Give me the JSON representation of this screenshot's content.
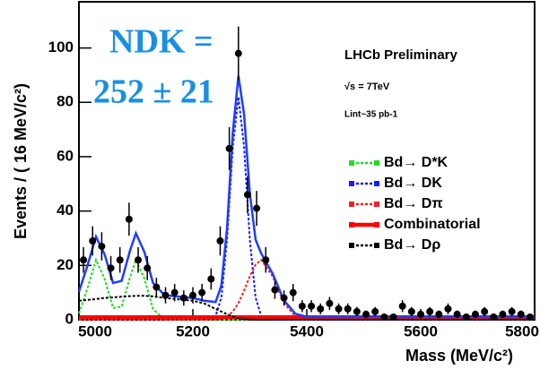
{
  "chart_data": {
    "type": "line",
    "y_label": "Events / ( 16 MeV/c²)",
    "x_label": "Mass (MeV/c²)",
    "annotations": [
      "NDK =",
      "252 ± 21",
      "LHCb Preliminary",
      "√s = 7TeV",
      "Lint~35 pb-1"
    ],
    "xlim": [
      5000,
      5800
    ],
    "xticks": [
      5000,
      5200,
      5400,
      5600,
      5800
    ],
    "ylim": [
      0,
      117
    ],
    "yticks": [
      0,
      20,
      40,
      60,
      80,
      100
    ],
    "x": [
      5000,
      5015,
      5030,
      5045,
      5060,
      5075,
      5090,
      5100,
      5115,
      5130,
      5150,
      5175,
      5200,
      5220,
      5240,
      5250,
      5260,
      5270,
      5280,
      5290,
      5300,
      5310,
      5320,
      5340,
      5360,
      5380,
      5400,
      5450,
      5500,
      5600,
      5700,
      5800
    ],
    "series": [
      {
        "color": "#1f3dff",
        "style": "solid",
        "values": [
          10.3,
          19.9,
          30.6,
          24.1,
          13.5,
          14.3,
          25.7,
          31.8,
          24.9,
          13.5,
          9.1,
          8.5,
          8,
          7,
          6.5,
          12.6,
          33.7,
          68.8,
          89.7,
          75.6,
          46.6,
          29.5,
          24.4,
          17,
          7.1,
          2.2,
          1.1,
          1,
          1,
          1,
          1,
          1
        ]
      },
      {
        "name": "Bd→ D*K",
        "color": "#22dd22",
        "style": "dotted",
        "values": [
          2.3,
          11.6,
          22,
          15.1,
          4.3,
          4.8,
          16,
          22,
          15.1,
          3.9,
          0.1,
          0,
          0,
          0,
          0,
          0,
          0,
          0,
          0,
          0,
          0,
          0,
          0,
          0,
          0,
          0,
          0,
          0,
          0,
          0,
          0,
          0
        ]
      },
      {
        "name": "Bd→ DK",
        "color": "#1a1aff",
        "style": "dotted",
        "values": [
          0,
          0,
          0,
          0,
          0,
          0,
          0,
          0,
          0,
          0,
          0,
          0,
          0,
          0,
          1.4,
          8.2,
          29.5,
          63.6,
          82,
          63.6,
          29.5,
          8.2,
          1.4,
          0,
          0,
          0,
          0,
          0,
          0,
          0,
          0,
          0
        ]
      },
      {
        "name": "Bd→ Dπ",
        "color": "#ee2222",
        "style": "dotted",
        "values": [
          0,
          0,
          0,
          0,
          0,
          0,
          0,
          0,
          0,
          0,
          0,
          0,
          0,
          0,
          0.1,
          0.4,
          1.2,
          3,
          6.1,
          10.7,
          16,
          20.3,
          22,
          16,
          6.1,
          1.2,
          0.1,
          0,
          0,
          0,
          0,
          0
        ]
      },
      {
        "name": "Combinatorial",
        "color": "#ff0000",
        "style": "thick",
        "values": [
          1,
          1,
          1,
          1,
          1,
          1,
          1,
          1,
          1,
          1,
          1,
          1,
          1,
          1,
          1,
          1,
          1,
          1,
          1,
          1,
          1,
          1,
          1,
          1,
          1,
          1,
          1,
          1,
          1,
          1,
          1,
          1
        ]
      },
      {
        "name": "Bd→ Dρ",
        "color": "#000000",
        "style": "dotted",
        "values": [
          7,
          7.3,
          7.6,
          8,
          8.2,
          8.5,
          8.7,
          8.8,
          8.8,
          8.6,
          8,
          7.5,
          7,
          6,
          4,
          3,
          2,
          1.2,
          0.6,
          0.3,
          0.1,
          0,
          0,
          0,
          0,
          0,
          0,
          0,
          0,
          0,
          0,
          0
        ]
      }
    ],
    "points": {
      "color": "#000000",
      "x": [
        5008,
        5024,
        5040,
        5056,
        5072,
        5088,
        5104,
        5120,
        5136,
        5152,
        5168,
        5184,
        5200,
        5216,
        5232,
        5248,
        5264,
        5280,
        5296,
        5312,
        5328,
        5344,
        5360,
        5376,
        5392,
        5408,
        5424,
        5440,
        5456,
        5472,
        5488,
        5504,
        5520,
        5536,
        5552,
        5568,
        5584,
        5600,
        5616,
        5632,
        5648,
        5664,
        5680,
        5696,
        5712,
        5728,
        5744,
        5760,
        5776,
        5792
      ],
      "values": [
        22,
        29,
        27,
        19,
        22,
        37,
        22,
        19,
        12,
        9,
        10,
        8,
        9,
        10,
        15,
        29,
        63,
        98,
        46,
        41,
        22,
        11,
        8,
        10,
        5,
        5,
        4,
        6,
        4,
        4,
        3,
        2,
        3,
        1,
        1,
        5,
        3,
        2,
        3,
        2,
        4,
        2,
        1,
        2,
        3,
        1,
        2,
        3,
        2,
        1
      ],
      "errors": [
        4.7,
        5.4,
        5.2,
        4.4,
        4.7,
        6.1,
        4.7,
        4.4,
        3.5,
        3,
        3.2,
        2.8,
        3,
        3.2,
        3.9,
        5.4,
        7.9,
        9.9,
        6.8,
        6.4,
        4.7,
        3.3,
        2.8,
        3.2,
        2.2,
        2.2,
        2,
        2.4,
        2,
        2,
        1.7,
        1.4,
        1.7,
        1,
        1,
        2.2,
        1.7,
        1.4,
        1.7,
        1.4,
        2,
        1.4,
        1,
        1.4,
        1.7,
        1,
        1.4,
        1.7,
        1.4,
        1
      ]
    }
  }
}
